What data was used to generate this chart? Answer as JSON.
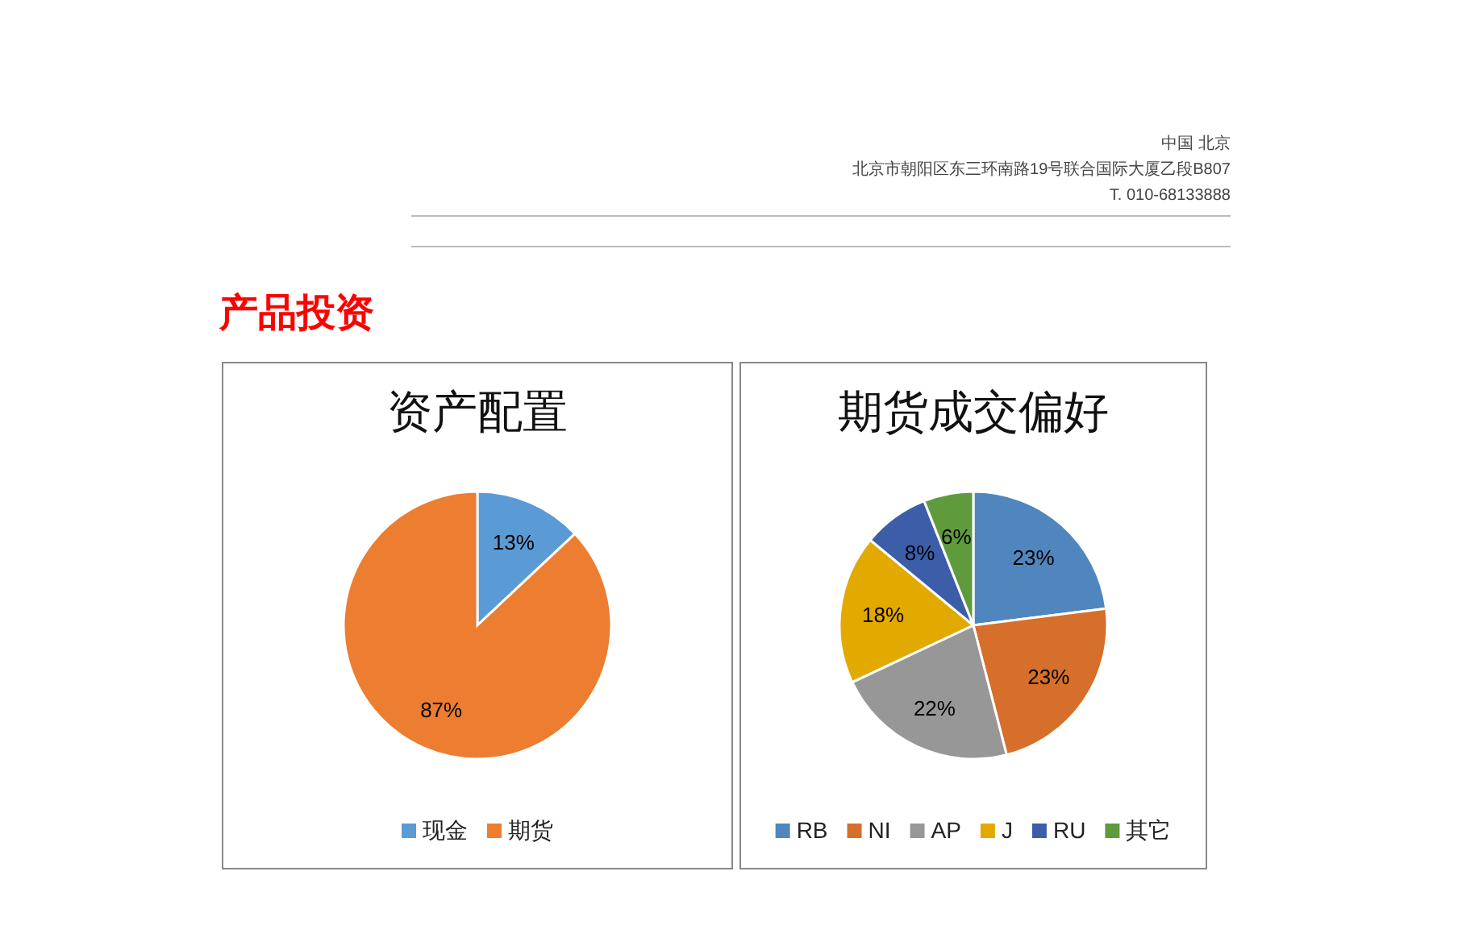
{
  "chart_data": [
    {
      "type": "other",
      "title": "产品投资",
      "annotations": [
        "中国 北京",
        "北京市朝阳区东三环南路19号联合国际大厦乙段B807",
        "T. 010-68133888"
      ]
    },
    {
      "type": "pie",
      "title": "资产配置",
      "categories": [
        "现金",
        "期货"
      ],
      "values": [
        13,
        87
      ],
      "colors": [
        "#5b9bd5",
        "#ed7d31"
      ],
      "value_labels": [
        "13%",
        "87%"
      ],
      "legend": "bottom"
    },
    {
      "type": "pie",
      "title": "期货成交偏好",
      "categories": [
        "RB",
        "NI",
        "AP",
        "J",
        "RU",
        "其它"
      ],
      "values": [
        23,
        23,
        22,
        18,
        8,
        6
      ],
      "colors": [
        "#4f86be",
        "#d66f2b",
        "#979797",
        "#e2a900",
        "#3c5ea9",
        "#5f9a3d"
      ],
      "value_labels": [
        "23%",
        "23%",
        "22%",
        "18%",
        "8%",
        "6%"
      ],
      "legend": "bottom"
    }
  ]
}
